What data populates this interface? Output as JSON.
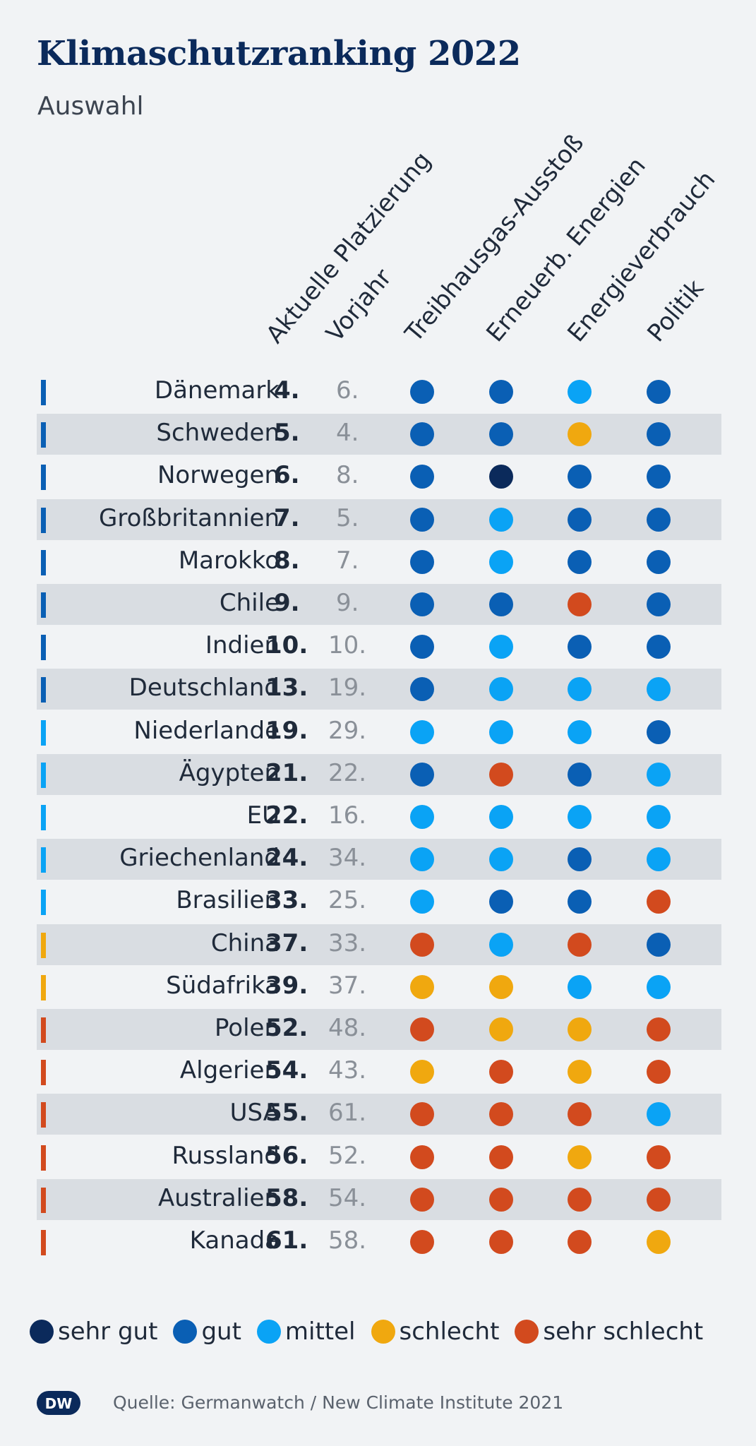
{
  "title": "Klimaschutzranking 2022",
  "subtitle": "Auswahl",
  "colors": {
    "sehr_gut": "#0b2a5b",
    "gut": "#0a5fb4",
    "mittel": "#0aa3f5",
    "schlecht": "#f0a80f",
    "sehr_schlecht": "#d24a1e"
  },
  "chart_data": {
    "type": "table",
    "columns": [
      "Aktuelle Platzierung",
      "Vorjahr",
      "Treibhausgas-Ausstoß",
      "Erneuerb. Energien",
      "Energieverbrauch",
      "Politik"
    ],
    "rows": [
      {
        "country": "Dänemark",
        "rank": "4.",
        "prev": "6.",
        "bar": "gut",
        "ratings": [
          "gut",
          "gut",
          "mittel",
          "gut"
        ]
      },
      {
        "country": "Schweden",
        "rank": "5.",
        "prev": "4.",
        "bar": "gut",
        "ratings": [
          "gut",
          "gut",
          "schlecht",
          "gut"
        ]
      },
      {
        "country": "Norwegen",
        "rank": "6.",
        "prev": "8.",
        "bar": "gut",
        "ratings": [
          "gut",
          "sehr_gut",
          "gut",
          "gut"
        ]
      },
      {
        "country": "Großbritannien",
        "rank": "7.",
        "prev": "5.",
        "bar": "gut",
        "ratings": [
          "gut",
          "mittel",
          "gut",
          "gut"
        ]
      },
      {
        "country": "Marokko",
        "rank": "8.",
        "prev": "7.",
        "bar": "gut",
        "ratings": [
          "gut",
          "mittel",
          "gut",
          "gut"
        ]
      },
      {
        "country": "Chile",
        "rank": "9.",
        "prev": "9.",
        "bar": "gut",
        "ratings": [
          "gut",
          "gut",
          "sehr_schlecht",
          "gut"
        ]
      },
      {
        "country": "Indien",
        "rank": "10.",
        "prev": "10.",
        "bar": "gut",
        "ratings": [
          "gut",
          "mittel",
          "gut",
          "gut"
        ]
      },
      {
        "country": "Deutschland",
        "rank": "13.",
        "prev": "19.",
        "bar": "gut",
        "ratings": [
          "gut",
          "mittel",
          "mittel",
          "mittel"
        ]
      },
      {
        "country": "Niederlande",
        "rank": "19.",
        "prev": "29.",
        "bar": "mittel",
        "ratings": [
          "mittel",
          "mittel",
          "mittel",
          "gut"
        ]
      },
      {
        "country": "Ägypten",
        "rank": "21.",
        "prev": "22.",
        "bar": "mittel",
        "ratings": [
          "gut",
          "sehr_schlecht",
          "gut",
          "mittel"
        ]
      },
      {
        "country": "EU",
        "rank": "22.",
        "prev": "16.",
        "bar": "mittel",
        "ratings": [
          "mittel",
          "mittel",
          "mittel",
          "mittel"
        ]
      },
      {
        "country": "Griechenland",
        "rank": "24.",
        "prev": "34.",
        "bar": "mittel",
        "ratings": [
          "mittel",
          "mittel",
          "gut",
          "mittel"
        ]
      },
      {
        "country": "Brasilien",
        "rank": "33.",
        "prev": "25.",
        "bar": "mittel",
        "ratings": [
          "mittel",
          "gut",
          "gut",
          "sehr_schlecht"
        ]
      },
      {
        "country": "China",
        "rank": "37.",
        "prev": "33.",
        "bar": "schlecht",
        "ratings": [
          "sehr_schlecht",
          "mittel",
          "sehr_schlecht",
          "gut"
        ]
      },
      {
        "country": "Südafrika",
        "rank": "39.",
        "prev": "37.",
        "bar": "schlecht",
        "ratings": [
          "schlecht",
          "schlecht",
          "mittel",
          "mittel"
        ]
      },
      {
        "country": "Polen",
        "rank": "52.",
        "prev": "48.",
        "bar": "sehr_schlecht",
        "ratings": [
          "sehr_schlecht",
          "schlecht",
          "schlecht",
          "sehr_schlecht"
        ]
      },
      {
        "country": "Algerien",
        "rank": "54.",
        "prev": "43.",
        "bar": "sehr_schlecht",
        "ratings": [
          "schlecht",
          "sehr_schlecht",
          "schlecht",
          "sehr_schlecht"
        ]
      },
      {
        "country": "USA",
        "rank": "55.",
        "prev": "61.",
        "bar": "sehr_schlecht",
        "ratings": [
          "sehr_schlecht",
          "sehr_schlecht",
          "sehr_schlecht",
          "mittel"
        ]
      },
      {
        "country": "Russland",
        "rank": "56.",
        "prev": "52.",
        "bar": "sehr_schlecht",
        "ratings": [
          "sehr_schlecht",
          "sehr_schlecht",
          "schlecht",
          "sehr_schlecht"
        ]
      },
      {
        "country": "Australien",
        "rank": "58.",
        "prev": "54.",
        "bar": "sehr_schlecht",
        "ratings": [
          "sehr_schlecht",
          "sehr_schlecht",
          "sehr_schlecht",
          "sehr_schlecht"
        ]
      },
      {
        "country": "Kanada",
        "rank": "61.",
        "prev": "58.",
        "bar": "sehr_schlecht",
        "ratings": [
          "sehr_schlecht",
          "sehr_schlecht",
          "sehr_schlecht",
          "schlecht"
        ]
      }
    ]
  },
  "legend": [
    {
      "key": "sehr_gut",
      "label": "sehr gut"
    },
    {
      "key": "gut",
      "label": "gut"
    },
    {
      "key": "mittel",
      "label": "mittel"
    },
    {
      "key": "schlecht",
      "label": "schlecht"
    },
    {
      "key": "sehr_schlecht",
      "label": "sehr schlecht"
    }
  ],
  "logo": {
    "icon": "dw-logo-icon",
    "text": "DW"
  },
  "source": "Quelle: Germanwatch / New Climate Institute 2021"
}
